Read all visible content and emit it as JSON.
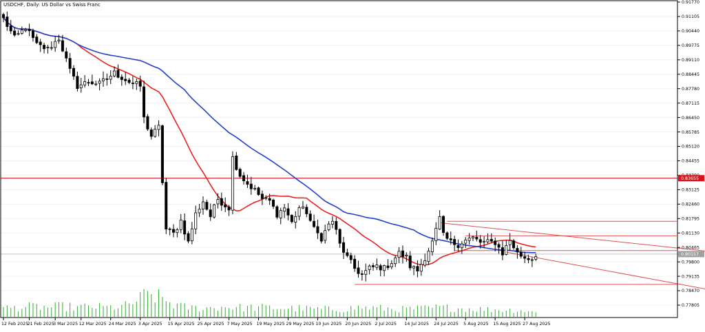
{
  "chart_data": {
    "type": "candlestick",
    "title": "USDCHF, Daily:  US Dollar vs Swiss Franc",
    "ylim": [
      0.77805,
      0.9177
    ],
    "y_ticks": [
      "0.91770",
      "0.91105",
      "0.90440",
      "0.89775",
      "0.89110",
      "0.88445",
      "0.87780",
      "0.87115",
      "0.86450",
      "0.85785",
      "0.85120",
      "0.84455",
      "0.83790",
      "0.83125",
      "0.82460",
      "0.81795",
      "0.81130",
      "0.80465",
      "0.79800",
      "0.79135",
      "0.78470",
      "0.77805"
    ],
    "x_ticks": [
      {
        "label": "12 Feb 2025",
        "i": 0
      },
      {
        "label": "21 Feb 2025",
        "i": 7
      },
      {
        "label": "3 Mar 2025",
        "i": 14
      },
      {
        "label": "12 Mar 2025",
        "i": 21
      },
      {
        "label": "24 Mar 2025",
        "i": 29
      },
      {
        "label": "3 Apr 2025",
        "i": 37
      },
      {
        "label": "15 Apr 2025",
        "i": 45
      },
      {
        "label": "25 Apr 2025",
        "i": 53
      },
      {
        "label": "7 May 2025",
        "i": 61
      },
      {
        "label": "19 May 2025",
        "i": 69
      },
      {
        "label": "29 May 2025",
        "i": 77
      },
      {
        "label": "10 Jun 2025",
        "i": 85
      },
      {
        "label": "20 Jun 2025",
        "i": 93
      },
      {
        "label": "2 Jul 2025",
        "i": 101
      },
      {
        "label": "14 Jul 2025",
        "i": 109
      },
      {
        "label": "24 Jul 2025",
        "i": 117
      },
      {
        "label": "5 Aug 2025",
        "i": 125
      },
      {
        "label": "15 Aug 2025",
        "i": 133
      },
      {
        "label": "27 Aug 2025",
        "i": 141
      }
    ],
    "close_anchors": [
      [
        0,
        0.91
      ],
      [
        3,
        0.901
      ],
      [
        6,
        0.906
      ],
      [
        9,
        0.898
      ],
      [
        12,
        0.896
      ],
      [
        15,
        0.901
      ],
      [
        18,
        0.886
      ],
      [
        20,
        0.879
      ],
      [
        23,
        0.881
      ],
      [
        26,
        0.88
      ],
      [
        30,
        0.885
      ],
      [
        34,
        0.881
      ],
      [
        37,
        0.879
      ],
      [
        38,
        0.864
      ],
      [
        40,
        0.856
      ],
      [
        42,
        0.86
      ],
      [
        43,
        0.835
      ],
      [
        44,
        0.813
      ],
      [
        46,
        0.811
      ],
      [
        48,
        0.817
      ],
      [
        50,
        0.807
      ],
      [
        52,
        0.82
      ],
      [
        54,
        0.826
      ],
      [
        56,
        0.819
      ],
      [
        58,
        0.827
      ],
      [
        60,
        0.824
      ],
      [
        61,
        0.823
      ],
      [
        62,
        0.846
      ],
      [
        64,
        0.838
      ],
      [
        66,
        0.834
      ],
      [
        68,
        0.831
      ],
      [
        70,
        0.827
      ],
      [
        72,
        0.826
      ],
      [
        74,
        0.82
      ],
      [
        76,
        0.823
      ],
      [
        78,
        0.816
      ],
      [
        80,
        0.823
      ],
      [
        82,
        0.821
      ],
      [
        84,
        0.813
      ],
      [
        86,
        0.809
      ],
      [
        88,
        0.815
      ],
      [
        89,
        0.817
      ],
      [
        90,
        0.812
      ],
      [
        91,
        0.806
      ],
      [
        93,
        0.8
      ],
      [
        95,
        0.795
      ],
      [
        97,
        0.792
      ],
      [
        99,
        0.795
      ],
      [
        101,
        0.796
      ],
      [
        103,
        0.795
      ],
      [
        105,
        0.798
      ],
      [
        107,
        0.802
      ],
      [
        109,
        0.8
      ],
      [
        110,
        0.796
      ],
      [
        112,
        0.794
      ],
      [
        114,
        0.8
      ],
      [
        116,
        0.807
      ],
      [
        118,
        0.818
      ],
      [
        119,
        0.81
      ],
      [
        121,
        0.807
      ],
      [
        123,
        0.806
      ],
      [
        125,
        0.808
      ],
      [
        127,
        0.809
      ],
      [
        129,
        0.807
      ],
      [
        131,
        0.807
      ],
      [
        133,
        0.807
      ],
      [
        135,
        0.802
      ],
      [
        137,
        0.808
      ],
      [
        139,
        0.802
      ],
      [
        141,
        0.8
      ],
      [
        143,
        0.7995
      ],
      [
        144,
        0.8004
      ]
    ],
    "volume_anchors": [
      [
        0,
        20
      ],
      [
        4,
        22
      ],
      [
        8,
        24
      ],
      [
        12,
        22
      ],
      [
        16,
        25
      ],
      [
        20,
        22
      ],
      [
        24,
        24
      ],
      [
        28,
        22
      ],
      [
        32,
        24
      ],
      [
        34,
        28
      ],
      [
        36,
        38
      ],
      [
        38,
        48
      ],
      [
        40,
        52
      ],
      [
        42,
        45
      ],
      [
        44,
        38
      ],
      [
        46,
        30
      ],
      [
        48,
        24
      ],
      [
        50,
        22
      ],
      [
        54,
        20
      ],
      [
        60,
        24
      ],
      [
        64,
        22
      ],
      [
        70,
        22
      ],
      [
        76,
        20
      ],
      [
        80,
        20
      ],
      [
        86,
        18
      ],
      [
        92,
        18
      ],
      [
        96,
        22
      ],
      [
        102,
        20
      ],
      [
        108,
        18
      ],
      [
        114,
        20
      ],
      [
        118,
        22
      ],
      [
        124,
        20
      ],
      [
        130,
        18
      ],
      [
        136,
        16
      ],
      [
        140,
        16
      ],
      [
        144,
        10
      ]
    ],
    "moving_averages": [
      {
        "color": "#e8201e",
        "period": 21
      },
      {
        "color": "#2040c8",
        "period": 50
      }
    ],
    "horizontal_levels": [
      {
        "value": 0.83655,
        "label": "0.83655",
        "color": "#d8141e",
        "label_bg": "#d8141e"
      },
      {
        "value": 0.80157,
        "label": "0.80157",
        "color": "#c0c0c0",
        "label_bg": "#a0a0a0"
      }
    ],
    "channel": {
      "color": "#e05050",
      "upper": [
        [
          118,
          0.816
        ],
        [
          212,
          0.799
        ]
      ],
      "lower": [
        [
          136,
          0.8025
        ],
        [
          212,
          0.7785
        ]
      ]
    },
    "range_lines": [
      {
        "from": 120,
        "value": 0.8167,
        "color": "#e05050"
      },
      {
        "from": 125,
        "value": 0.81,
        "color": "#e05050"
      },
      {
        "from": 122,
        "value": 0.8032,
        "color": "#e05050"
      },
      {
        "from": 95,
        "value": 0.7876,
        "color": "#e05050"
      }
    ],
    "colors": {
      "bull": "#ffffff",
      "bear": "#000000",
      "wick": "#000000",
      "volume": "#2eae2e",
      "grid": "#f0f0f0"
    }
  }
}
